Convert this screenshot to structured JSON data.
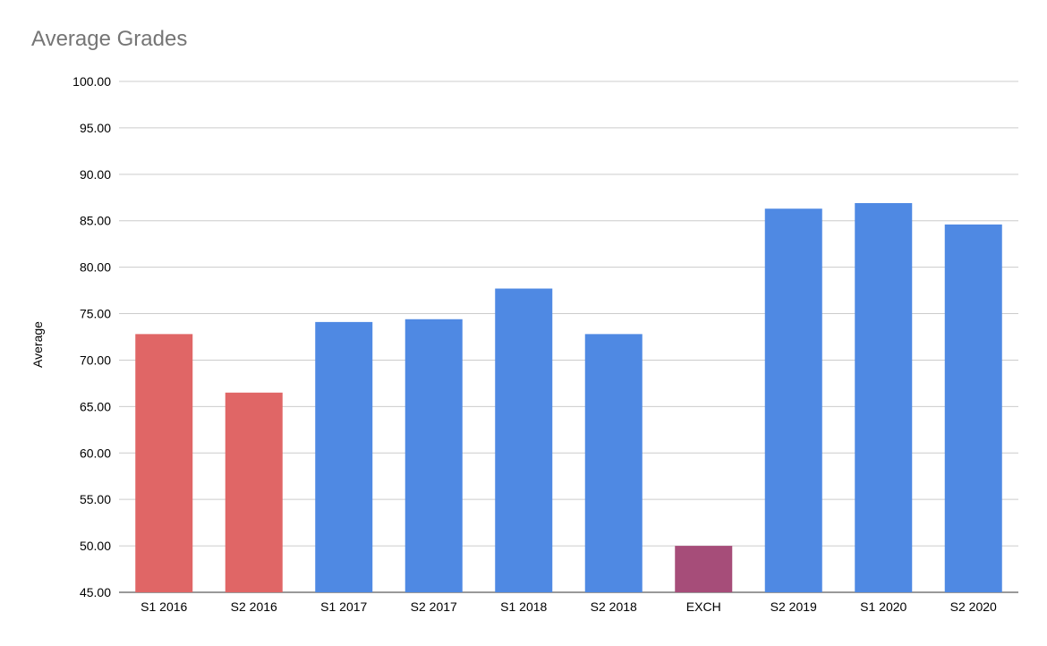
{
  "chart_data": {
    "type": "bar",
    "title": "Average Grades",
    "xlabel": "",
    "ylabel": "Average",
    "ylim": [
      45,
      100
    ],
    "yticks": [
      "45.00",
      "50.00",
      "55.00",
      "60.00",
      "65.00",
      "70.00",
      "75.00",
      "80.00",
      "85.00",
      "90.00",
      "95.00",
      "100.00"
    ],
    "categories": [
      "S1 2016",
      "S2 2016",
      "S1 2017",
      "S2 2017",
      "S1 2018",
      "S2 2018",
      "EXCH",
      "S2 2019",
      "S1 2020",
      "S2 2020"
    ],
    "values": [
      72.8,
      66.5,
      74.1,
      74.4,
      77.7,
      72.8,
      50.0,
      86.3,
      86.9,
      84.6
    ],
    "bar_colors": [
      "#e06666",
      "#e06666",
      "#4f89e3",
      "#4f89e3",
      "#4f89e3",
      "#4f89e3",
      "#a64d79",
      "#4f89e3",
      "#4f89e3",
      "#4f89e3"
    ],
    "grid": true,
    "legend": "none"
  }
}
